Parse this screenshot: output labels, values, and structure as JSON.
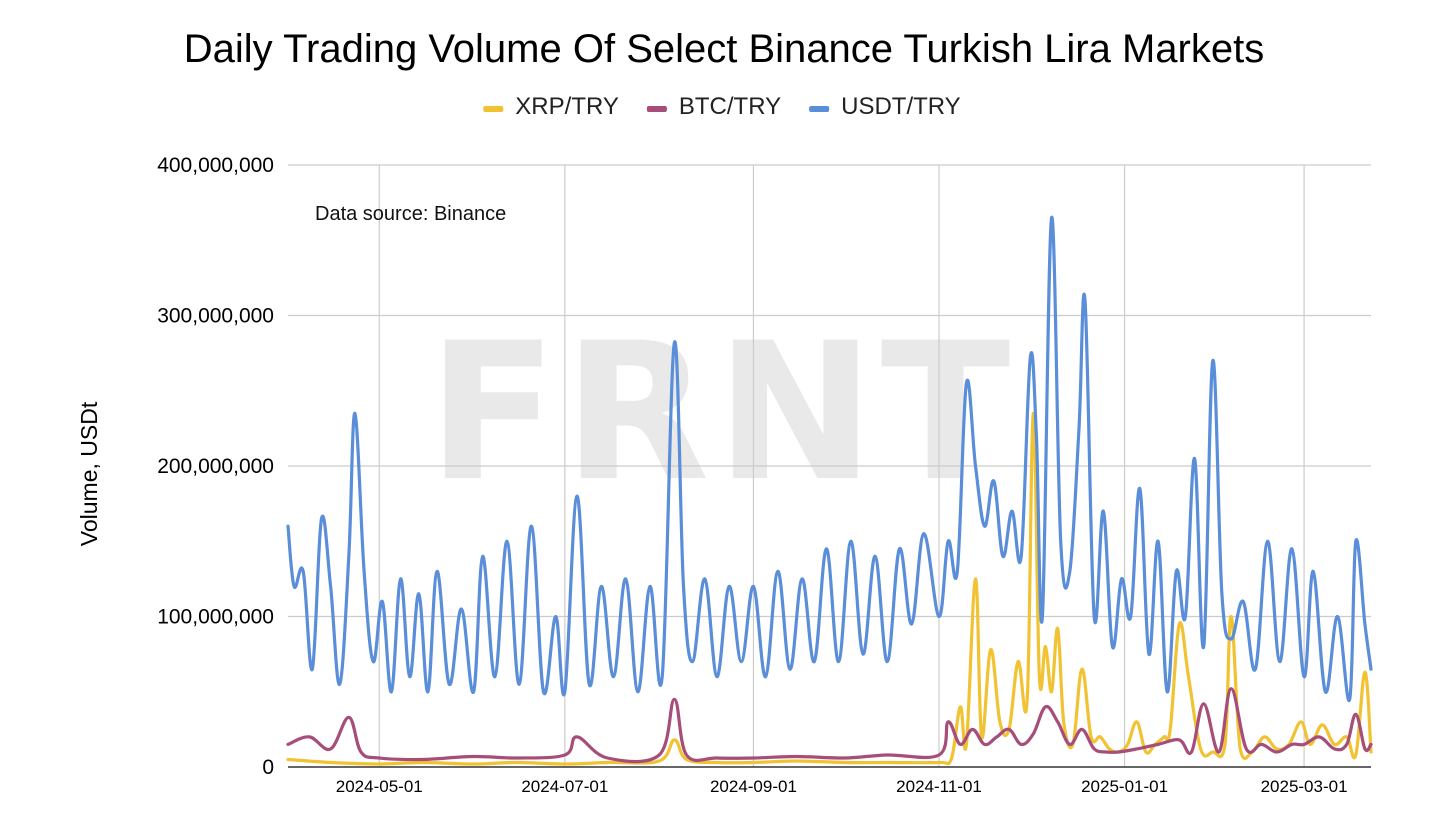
{
  "chart_data": {
    "type": "line",
    "title": "Daily Trading Volume Of Select Binance Turkish Lira Markets",
    "ylabel": "Volume, USDt",
    "xlabel": "",
    "ylim": [
      0,
      400000000
    ],
    "yticks": [
      0,
      100000000,
      200000000,
      300000000,
      400000000
    ],
    "ytick_labels": [
      "0",
      "100,000,000",
      "200,000,000",
      "300,000,000",
      "400,000,000"
    ],
    "xlim": [
      "2024-04-01",
      "2025-03-23"
    ],
    "xticks": [
      "2024-05-01",
      "2024-07-01",
      "2024-09-01",
      "2024-11-01",
      "2025-01-01",
      "2025-03-01"
    ],
    "legend_position": "top-center",
    "grid": true,
    "annotation": "Data source: Binance",
    "watermark": "FRNT",
    "series": [
      {
        "name": "XRP/TRY",
        "color": "#f1c232",
        "x": [
          "2024-04-01",
          "2024-04-15",
          "2024-05-01",
          "2024-05-15",
          "2024-06-01",
          "2024-06-15",
          "2024-07-01",
          "2024-07-15",
          "2024-08-01",
          "2024-08-06",
          "2024-08-10",
          "2024-08-20",
          "2024-09-01",
          "2024-09-15",
          "2024-10-01",
          "2024-10-15",
          "2024-11-01",
          "2024-11-05",
          "2024-11-08",
          "2024-11-10",
          "2024-11-13",
          "2024-11-15",
          "2024-11-18",
          "2024-11-21",
          "2024-11-24",
          "2024-11-27",
          "2024-11-30",
          "2024-12-02",
          "2024-12-04",
          "2024-12-06",
          "2024-12-08",
          "2024-12-10",
          "2024-12-12",
          "2024-12-15",
          "2024-12-18",
          "2024-12-21",
          "2024-12-24",
          "2024-12-27",
          "2024-12-30",
          "2025-01-02",
          "2025-01-05",
          "2025-01-08",
          "2025-01-11",
          "2025-01-14",
          "2025-01-16",
          "2025-01-19",
          "2025-01-22",
          "2025-01-26",
          "2025-01-30",
          "2025-02-03",
          "2025-02-05",
          "2025-02-08",
          "2025-02-12",
          "2025-02-16",
          "2025-02-20",
          "2025-02-24",
          "2025-02-28",
          "2025-03-03",
          "2025-03-07",
          "2025-03-11",
          "2025-03-15",
          "2025-03-18",
          "2025-03-21",
          "2025-03-23"
        ],
        "values": [
          5000000,
          3000000,
          2000000,
          3000000,
          2000000,
          3000000,
          2000000,
          3000000,
          4000000,
          18000000,
          5000000,
          3000000,
          3000000,
          4000000,
          3000000,
          3000000,
          3000000,
          5000000,
          40000000,
          15000000,
          125000000,
          20000000,
          78000000,
          30000000,
          25000000,
          70000000,
          45000000,
          235000000,
          60000000,
          80000000,
          50000000,
          92000000,
          30000000,
          15000000,
          65000000,
          20000000,
          20000000,
          12000000,
          10000000,
          15000000,
          30000000,
          10000000,
          15000000,
          20000000,
          25000000,
          95000000,
          60000000,
          12000000,
          10000000,
          15000000,
          100000000,
          12000000,
          10000000,
          20000000,
          12000000,
          15000000,
          30000000,
          15000000,
          28000000,
          15000000,
          20000000,
          8000000,
          63000000,
          10000000
        ]
      },
      {
        "name": "BTC/TRY",
        "color": "#a64d79",
        "x": [
          "2024-04-01",
          "2024-04-08",
          "2024-04-15",
          "2024-04-21",
          "2024-04-25",
          "2024-05-01",
          "2024-05-15",
          "2024-06-01",
          "2024-06-15",
          "2024-07-01",
          "2024-07-05",
          "2024-07-15",
          "2024-08-01",
          "2024-08-06",
          "2024-08-10",
          "2024-08-20",
          "2024-09-01",
          "2024-09-15",
          "2024-10-01",
          "2024-10-15",
          "2024-11-01",
          "2024-11-04",
          "2024-11-08",
          "2024-11-12",
          "2024-11-16",
          "2024-11-20",
          "2024-11-24",
          "2024-11-28",
          "2024-12-02",
          "2024-12-06",
          "2024-12-10",
          "2024-12-14",
          "2024-12-18",
          "2024-12-22",
          "2024-12-26",
          "2024-12-30",
          "2025-01-05",
          "2025-01-12",
          "2025-01-19",
          "2025-01-23",
          "2025-01-27",
          "2025-02-01",
          "2025-02-05",
          "2025-02-10",
          "2025-02-15",
          "2025-02-20",
          "2025-02-25",
          "2025-03-01",
          "2025-03-06",
          "2025-03-11",
          "2025-03-15",
          "2025-03-18",
          "2025-03-21",
          "2025-03-23"
        ],
        "values": [
          15000000,
          20000000,
          12000000,
          33000000,
          10000000,
          6000000,
          5000000,
          7000000,
          6000000,
          8000000,
          20000000,
          6000000,
          8000000,
          45000000,
          8000000,
          6000000,
          6000000,
          7000000,
          6000000,
          8000000,
          8000000,
          30000000,
          15000000,
          25000000,
          15000000,
          20000000,
          25000000,
          15000000,
          22000000,
          40000000,
          30000000,
          15000000,
          25000000,
          12000000,
          10000000,
          10000000,
          12000000,
          15000000,
          18000000,
          10000000,
          42000000,
          10000000,
          52000000,
          12000000,
          15000000,
          10000000,
          15000000,
          15000000,
          20000000,
          12000000,
          15000000,
          35000000,
          12000000,
          15000000
        ]
      },
      {
        "name": "USDT/TRY",
        "color": "#5b8ed8",
        "x": [
          "2024-04-01",
          "2024-04-03",
          "2024-04-06",
          "2024-04-09",
          "2024-04-12",
          "2024-04-15",
          "2024-04-18",
          "2024-04-21",
          "2024-04-23",
          "2024-04-26",
          "2024-04-29",
          "2024-05-02",
          "2024-05-05",
          "2024-05-08",
          "2024-05-11",
          "2024-05-14",
          "2024-05-17",
          "2024-05-20",
          "2024-05-24",
          "2024-05-28",
          "2024-06-01",
          "2024-06-04",
          "2024-06-08",
          "2024-06-12",
          "2024-06-16",
          "2024-06-20",
          "2024-06-24",
          "2024-06-28",
          "2024-07-01",
          "2024-07-05",
          "2024-07-09",
          "2024-07-13",
          "2024-07-17",
          "2024-07-21",
          "2024-07-25",
          "2024-07-29",
          "2024-08-02",
          "2024-08-06",
          "2024-08-09",
          "2024-08-12",
          "2024-08-16",
          "2024-08-20",
          "2024-08-24",
          "2024-08-28",
          "2024-09-01",
          "2024-09-05",
          "2024-09-09",
          "2024-09-13",
          "2024-09-17",
          "2024-09-21",
          "2024-09-25",
          "2024-09-29",
          "2024-10-03",
          "2024-10-07",
          "2024-10-11",
          "2024-10-15",
          "2024-10-19",
          "2024-10-23",
          "2024-10-27",
          "2024-11-01",
          "2024-11-04",
          "2024-11-07",
          "2024-11-10",
          "2024-11-13",
          "2024-11-16",
          "2024-11-19",
          "2024-11-22",
          "2024-11-25",
          "2024-11-28",
          "2024-12-01",
          "2024-12-03",
          "2024-12-05",
          "2024-12-08",
          "2024-12-11",
          "2024-12-14",
          "2024-12-17",
          "2024-12-19",
          "2024-12-22",
          "2024-12-25",
          "2024-12-28",
          "2024-12-31",
          "2025-01-03",
          "2025-01-06",
          "2025-01-09",
          "2025-01-12",
          "2025-01-15",
          "2025-01-18",
          "2025-01-21",
          "2025-01-24",
          "2025-01-27",
          "2025-01-30",
          "2025-02-02",
          "2025-02-05",
          "2025-02-09",
          "2025-02-13",
          "2025-02-17",
          "2025-02-21",
          "2025-02-25",
          "2025-03-01",
          "2025-03-04",
          "2025-03-08",
          "2025-03-12",
          "2025-03-16",
          "2025-03-18",
          "2025-03-21",
          "2025-03-23"
        ],
        "values": [
          160000000,
          120000000,
          130000000,
          65000000,
          165000000,
          120000000,
          55000000,
          140000000,
          235000000,
          130000000,
          70000000,
          110000000,
          50000000,
          125000000,
          60000000,
          115000000,
          50000000,
          130000000,
          55000000,
          105000000,
          50000000,
          140000000,
          60000000,
          150000000,
          55000000,
          160000000,
          50000000,
          100000000,
          50000000,
          180000000,
          55000000,
          120000000,
          60000000,
          125000000,
          50000000,
          120000000,
          60000000,
          282000000,
          120000000,
          70000000,
          125000000,
          60000000,
          120000000,
          70000000,
          120000000,
          60000000,
          130000000,
          65000000,
          125000000,
          70000000,
          145000000,
          70000000,
          150000000,
          75000000,
          140000000,
          70000000,
          145000000,
          95000000,
          155000000,
          100000000,
          150000000,
          130000000,
          255000000,
          200000000,
          160000000,
          190000000,
          140000000,
          170000000,
          140000000,
          272000000,
          220000000,
          100000000,
          365000000,
          150000000,
          130000000,
          225000000,
          310000000,
          100000000,
          170000000,
          80000000,
          125000000,
          100000000,
          185000000,
          75000000,
          150000000,
          50000000,
          130000000,
          100000000,
          205000000,
          80000000,
          270000000,
          115000000,
          85000000,
          110000000,
          65000000,
          150000000,
          70000000,
          145000000,
          60000000,
          130000000,
          50000000,
          100000000,
          45000000,
          150000000,
          95000000,
          65000000
        ]
      }
    ]
  }
}
